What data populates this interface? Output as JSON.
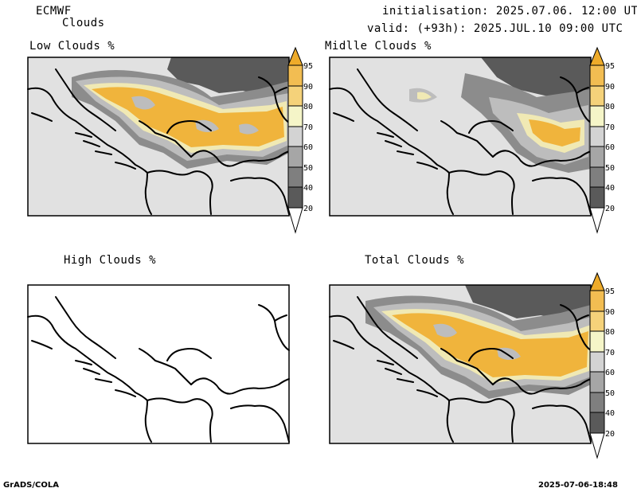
{
  "header": {
    "model": "ECMWF",
    "parameter": "Clouds",
    "init": "initialisation: 2025.07.06. 12:00 UTC",
    "valid": "valid: (+93h): 2025.JUL.10 09:00 UTC"
  },
  "panels": [
    {
      "title": "Low Clouds %",
      "has_colorbar": true
    },
    {
      "title": "Midlle Clouds %",
      "has_colorbar": true
    },
    {
      "title": "High Clouds %",
      "has_colorbar": false
    },
    {
      "title": "Total Clouds %",
      "has_colorbar": true
    }
  ],
  "colorbar": {
    "levels": [
      "20",
      "40",
      "50",
      "60",
      "70",
      "80",
      "90",
      "95"
    ],
    "colors": [
      "#ffffff",
      "#5a5a5a",
      "#7f7f7f",
      "#a6a6a6",
      "#d3d3d3",
      "#f5f5c8",
      "#f5d27a",
      "#f2bd52",
      "#eeab2a",
      "#ffffff"
    ]
  },
  "fill_colors": {
    "background": "#e1e1e1",
    "dark": "#5a5a5a",
    "mid": "#8c8c8c",
    "light": "#bdbdbd",
    "cream": "#f0e9b4",
    "orange": "#f0b43c"
  },
  "footer": {
    "left": "GrADS/COLA",
    "right": "2025-07-06-18:48"
  }
}
